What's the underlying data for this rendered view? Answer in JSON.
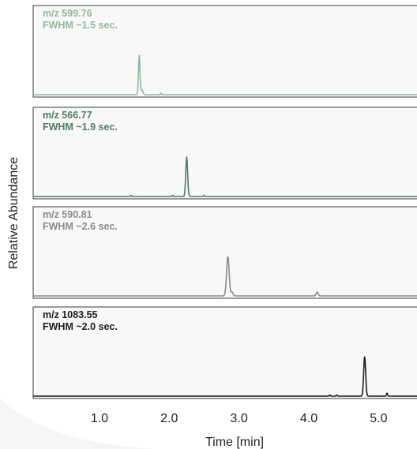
{
  "chart_data": {
    "type": "line",
    "xlabel": "Time [min]",
    "ylabel": "Relative Abundance",
    "xlim": [
      0.05,
      5.55
    ],
    "x_ticks": [
      "1.0",
      "2.0",
      "3.0",
      "4.0",
      "5.0"
    ],
    "x_tick_values": [
      1.0,
      2.0,
      3.0,
      4.0,
      5.0
    ],
    "y_scale": "relative, 0 to 1 per panel",
    "series": [
      {
        "mz": "m/z 599.76",
        "fwhm": "FWHM ~1.5 sec.",
        "color": "#8fb8a0",
        "peaks": [
          {
            "x": 1.57,
            "height": 1.0,
            "fwhm_sec": 1.5
          },
          {
            "x": 1.61,
            "height": 0.12,
            "fwhm_sec": 2.0
          },
          {
            "x": 1.88,
            "height": 0.04,
            "fwhm_sec": 1.0
          }
        ]
      },
      {
        "mz": "m/z 566.77",
        "fwhm": "FWHM ~1.9 sec.",
        "color": "#4e7d63",
        "peaks": [
          {
            "x": 1.45,
            "height": 0.03,
            "fwhm_sec": 1.0
          },
          {
            "x": 2.05,
            "height": 0.03,
            "fwhm_sec": 1.0
          },
          {
            "x": 2.25,
            "height": 1.0,
            "fwhm_sec": 1.9
          },
          {
            "x": 2.5,
            "height": 0.03,
            "fwhm_sec": 1.0
          }
        ]
      },
      {
        "mz": "m/z 590.81",
        "fwhm": "FWHM ~2.6 sec.",
        "color": "#8c8c8c",
        "peaks": [
          {
            "x": 2.84,
            "height": 1.0,
            "fwhm_sec": 2.6
          },
          {
            "x": 2.9,
            "height": 0.1,
            "fwhm_sec": 2.0
          },
          {
            "x": 4.12,
            "height": 0.1,
            "fwhm_sec": 2.0
          }
        ]
      },
      {
        "mz": "m/z 1083.55",
        "fwhm": "FWHM ~2.0 sec.",
        "color": "#1e1e1e",
        "peaks": [
          {
            "x": 4.3,
            "height": 0.03,
            "fwhm_sec": 1.0
          },
          {
            "x": 4.4,
            "height": 0.03,
            "fwhm_sec": 1.0
          },
          {
            "x": 4.8,
            "height": 1.0,
            "fwhm_sec": 2.0
          },
          {
            "x": 5.12,
            "height": 0.08,
            "fwhm_sec": 1.0
          }
        ]
      }
    ]
  }
}
